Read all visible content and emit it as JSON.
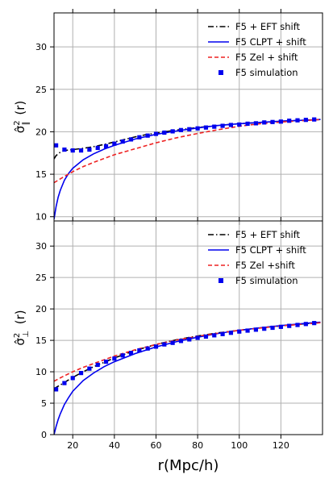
{
  "chart_data": [
    {
      "type": "line",
      "ylabel": "σ̂²∥(r)",
      "ylabel_base": "σ̂",
      "ylabel_sup": "2",
      "ylabel_sub": "∥",
      "ylabel_arg": "(r)",
      "xlim": [
        11,
        140
      ],
      "ylim": [
        9.5,
        34
      ],
      "xticks": [
        20,
        40,
        60,
        80,
        100,
        120
      ],
      "yticks": [
        10,
        15,
        20,
        25,
        30
      ],
      "grid": true,
      "legend_position": "top-right",
      "series": [
        {
          "name": "F5 + EFT shift",
          "style": "dashdot",
          "color": "#000000",
          "x": [
            11,
            12,
            14,
            16,
            18,
            20,
            25,
            30,
            35,
            40,
            45,
            50,
            55,
            60,
            70,
            80,
            90,
            100,
            110,
            120,
            130,
            139
          ],
          "y": [
            16.8,
            17.2,
            17.6,
            17.8,
            17.85,
            17.9,
            18.05,
            18.25,
            18.5,
            18.8,
            19.1,
            19.4,
            19.65,
            19.85,
            20.2,
            20.5,
            20.75,
            20.95,
            21.1,
            21.25,
            21.35,
            21.45
          ]
        },
        {
          "name": "F5 CLPT + shift",
          "style": "solid",
          "color": "#0000ee",
          "x": [
            11,
            12,
            13,
            14,
            16,
            18,
            20,
            25,
            30,
            35,
            40,
            50,
            60,
            70,
            80,
            90,
            100,
            110,
            120,
            130,
            139
          ],
          "y": [
            9.7,
            11.2,
            12.3,
            13.1,
            14.3,
            15.1,
            15.7,
            16.7,
            17.4,
            17.95,
            18.4,
            19.15,
            19.7,
            20.1,
            20.45,
            20.75,
            20.95,
            21.1,
            21.25,
            21.35,
            21.45
          ]
        },
        {
          "name": "F5 Zel + shift",
          "style": "dashed",
          "color": "#ee2222",
          "x": [
            11,
            15,
            20,
            25,
            30,
            40,
            50,
            60,
            70,
            80,
            90,
            100,
            110,
            120,
            130,
            139
          ],
          "y": [
            14.0,
            14.6,
            15.3,
            15.9,
            16.4,
            17.3,
            18.0,
            18.7,
            19.3,
            19.8,
            20.25,
            20.65,
            20.95,
            21.15,
            21.3,
            21.45
          ]
        },
        {
          "name": "F5 simulation",
          "style": "markers",
          "color": "#0000ee",
          "x": [
            12,
            16,
            20,
            24,
            28,
            32,
            36,
            40,
            44,
            48,
            52,
            56,
            60,
            64,
            68,
            72,
            76,
            80,
            84,
            88,
            92,
            96,
            100,
            104,
            108,
            112,
            116,
            120,
            124,
            128,
            132,
            136
          ],
          "y": [
            18.4,
            17.9,
            17.8,
            17.8,
            17.9,
            18.1,
            18.3,
            18.6,
            18.85,
            19.1,
            19.35,
            19.55,
            19.75,
            19.9,
            20.05,
            20.2,
            20.3,
            20.4,
            20.5,
            20.6,
            20.7,
            20.8,
            20.85,
            20.95,
            21.0,
            21.1,
            21.15,
            21.2,
            21.3,
            21.35,
            21.4,
            21.45
          ]
        }
      ]
    },
    {
      "type": "line",
      "ylabel": "σ̂²⊥(r)",
      "ylabel_base": "σ̂",
      "ylabel_sup": "2",
      "ylabel_sub": "⊥",
      "ylabel_arg": "(r)",
      "xlabel": "r(Mpc/h)",
      "xlim": [
        11,
        140
      ],
      "ylim": [
        0,
        34
      ],
      "xticks": [
        20,
        40,
        60,
        80,
        100,
        120
      ],
      "yticks": [
        0,
        5,
        10,
        15,
        20,
        25,
        30
      ],
      "grid": true,
      "legend_position": "top-right",
      "series": [
        {
          "name": "F5 + EFT shift",
          "style": "dashdot",
          "color": "#000000",
          "x": [
            11,
            15,
            20,
            25,
            30,
            40,
            50,
            60,
            70,
            80,
            90,
            100,
            110,
            120,
            130,
            139
          ],
          "y": [
            7.3,
            8.1,
            9.1,
            10.0,
            10.8,
            12.2,
            13.4,
            14.35,
            15.1,
            15.7,
            16.2,
            16.6,
            17.0,
            17.3,
            17.6,
            17.85
          ]
        },
        {
          "name": "F5 CLPT + shift",
          "style": "solid",
          "color": "#0000ee",
          "x": [
            11,
            12,
            13,
            14,
            16,
            18,
            20,
            25,
            30,
            35,
            40,
            50,
            60,
            70,
            80,
            90,
            100,
            110,
            120,
            130,
            139
          ],
          "y": [
            0.0,
            1.3,
            2.4,
            3.3,
            4.8,
            5.9,
            6.9,
            8.6,
            9.8,
            10.8,
            11.6,
            12.9,
            13.95,
            14.8,
            15.5,
            16.1,
            16.6,
            17.0,
            17.35,
            17.65,
            17.9
          ]
        },
        {
          "name": "F5 Zel +shift",
          "style": "dashed",
          "color": "#ee2222",
          "x": [
            11,
            15,
            20,
            25,
            30,
            40,
            50,
            60,
            70,
            80,
            90,
            100,
            110,
            120,
            130,
            139
          ],
          "y": [
            8.5,
            9.2,
            10.0,
            10.7,
            11.3,
            12.5,
            13.5,
            14.35,
            15.05,
            15.65,
            16.15,
            16.6,
            16.95,
            17.3,
            17.55,
            17.8
          ]
        },
        {
          "name": "F5 simulation",
          "style": "markers",
          "color": "#0000ee",
          "x": [
            12,
            16,
            20,
            24,
            28,
            32,
            36,
            40,
            44,
            48,
            52,
            56,
            60,
            64,
            68,
            72,
            76,
            80,
            84,
            88,
            92,
            96,
            100,
            104,
            108,
            112,
            116,
            120,
            124,
            128,
            132,
            136
          ],
          "y": [
            7.2,
            8.2,
            9.0,
            9.8,
            10.5,
            11.1,
            11.6,
            12.1,
            12.6,
            13.0,
            13.4,
            13.7,
            14.0,
            14.35,
            14.6,
            14.9,
            15.15,
            15.4,
            15.6,
            15.8,
            16.0,
            16.2,
            16.4,
            16.55,
            16.7,
            16.85,
            17.0,
            17.15,
            17.3,
            17.45,
            17.6,
            17.75
          ]
        }
      ]
    }
  ]
}
